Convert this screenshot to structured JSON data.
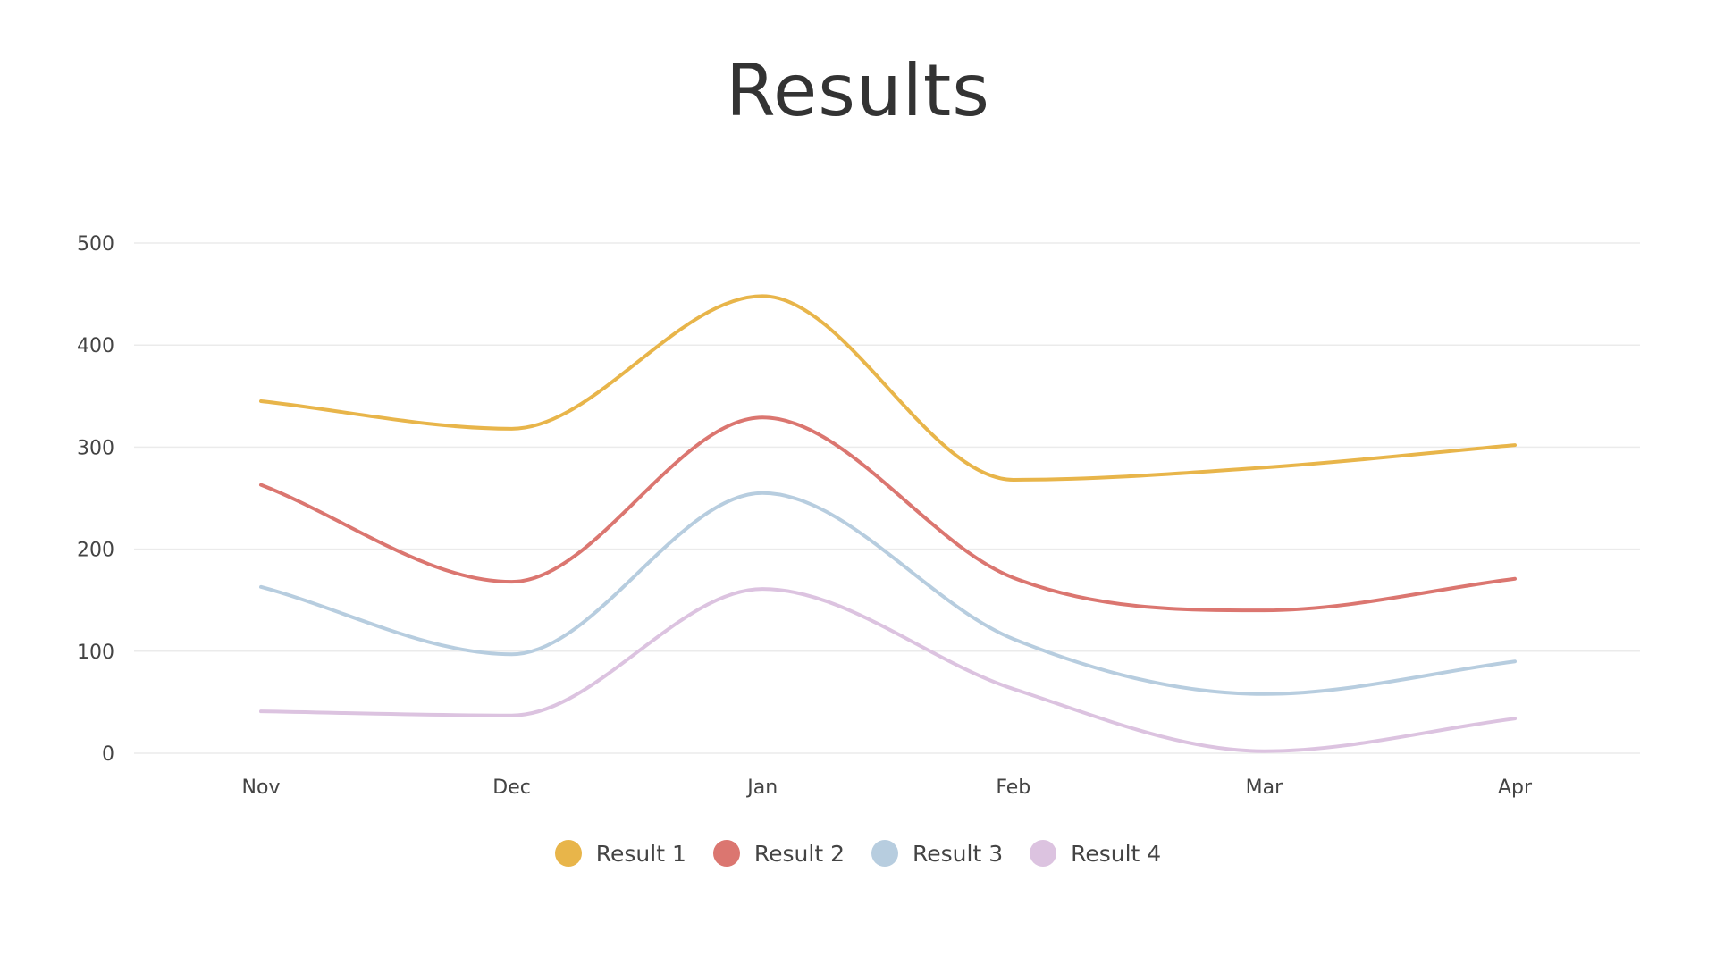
{
  "chart_data": {
    "type": "line",
    "title": "Results",
    "xlabel": "",
    "ylabel": "",
    "categories": [
      "Nov",
      "Dec",
      "Jan",
      "Feb",
      "Mar",
      "Apr"
    ],
    "ylim": [
      0,
      500
    ],
    "yticks": [
      0,
      100,
      200,
      300,
      400,
      500
    ],
    "grid": true,
    "legend_position": "bottom",
    "smooth": true,
    "series": [
      {
        "name": "Result 1",
        "color": "#E8B54A",
        "values": [
          345,
          318,
          448,
          268,
          280,
          302
        ]
      },
      {
        "name": "Result 2",
        "color": "#DB7670",
        "values": [
          263,
          168,
          329,
          172,
          140,
          171
        ]
      },
      {
        "name": "Result 3",
        "color": "#B7CDDF",
        "values": [
          163,
          97,
          255,
          112,
          58,
          90
        ]
      },
      {
        "name": "Result 4",
        "color": "#DCC3E0",
        "values": [
          41,
          37,
          161,
          63,
          2,
          34
        ]
      }
    ]
  }
}
